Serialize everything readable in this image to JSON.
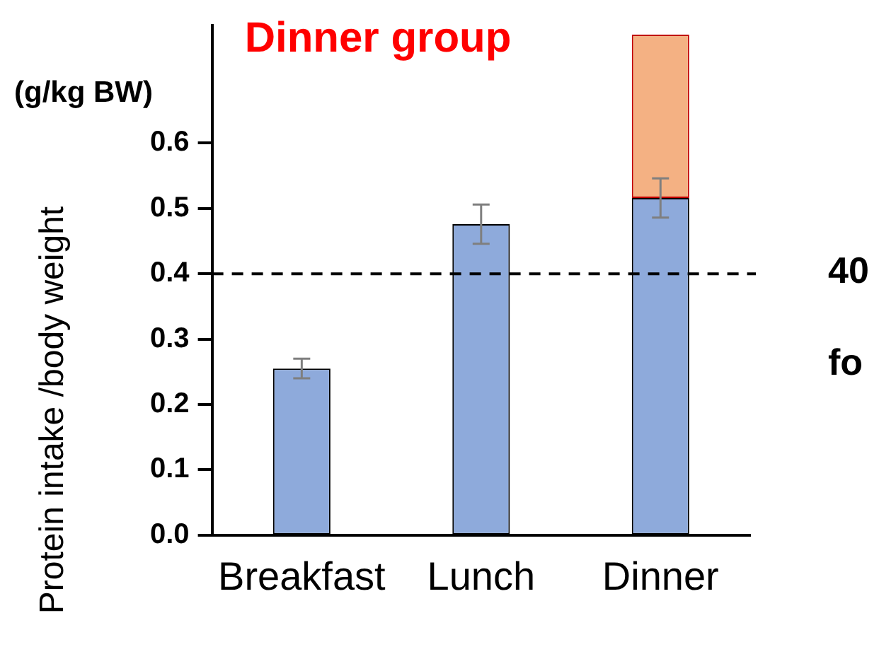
{
  "chart_data": {
    "type": "bar",
    "title": "Dinner group",
    "ylabel": "Protein intake /body weight",
    "annotations": [
      "(g/kg BW)",
      "40",
      "fo"
    ],
    "categories": [
      "Breakfast",
      "Lunch",
      "Dinner"
    ],
    "stacked": true,
    "series": [
      {
        "color": "#8eaadb",
        "values": [
          0.255,
          0.476,
          0.516
        ],
        "errors": [
          0.015,
          0.03,
          0.03
        ]
      },
      {
        "color": "#f4b183",
        "values": [
          null,
          null,
          0.25
        ]
      }
    ],
    "ylim": [
      0,
      0.78
    ],
    "yticks": [
      {
        "value": 0,
        "label": "0.0"
      },
      0.1,
      0.2,
      0.3,
      0.4,
      0.5,
      0.6
    ],
    "ref_lines": [
      {
        "axis": "y",
        "value": 0.4,
        "line_style": "dashed",
        "color": "#000000"
      }
    ],
    "grid": false,
    "legend": false
  }
}
